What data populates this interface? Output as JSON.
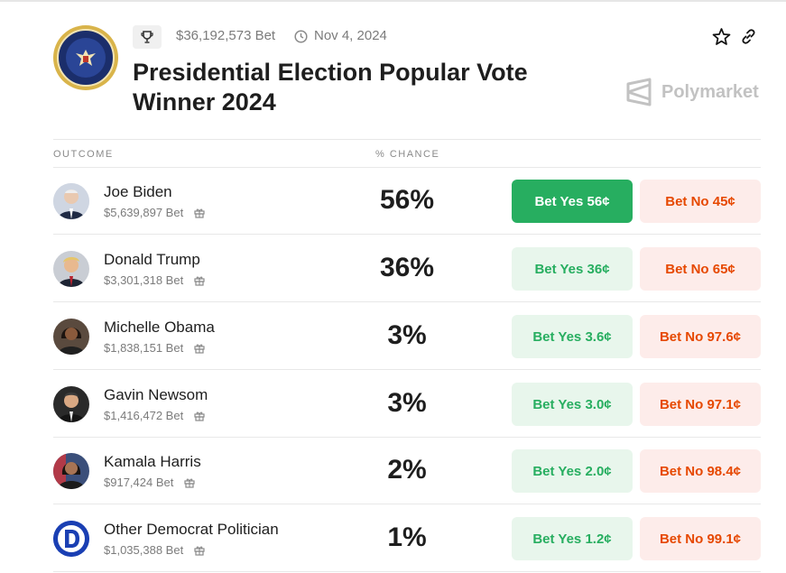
{
  "header": {
    "volume": "$36,192,573 Bet",
    "date": "Nov 4, 2024",
    "title": "Presidential Election Popular Vote Winner 2024",
    "brand": "Polymarket",
    "icons": [
      "trophy-icon",
      "clock-icon",
      "star-icon",
      "link-icon"
    ]
  },
  "table": {
    "columns": {
      "outcome": "OUTCOME",
      "chance": "% CHANCE"
    },
    "rows": [
      {
        "name": "Joe Biden",
        "bet": "$5,639,897 Bet",
        "chance": "56%",
        "yes": "Bet Yes 56¢",
        "no": "Bet No 45¢"
      },
      {
        "name": "Donald Trump",
        "bet": "$3,301,318 Bet",
        "chance": "36%",
        "yes": "Bet Yes 36¢",
        "no": "Bet No 65¢"
      },
      {
        "name": "Michelle Obama",
        "bet": "$1,838,151 Bet",
        "chance": "3%",
        "yes": "Bet Yes 3.6¢",
        "no": "Bet No 97.6¢"
      },
      {
        "name": "Gavin Newsom",
        "bet": "$1,416,472 Bet",
        "chance": "3%",
        "yes": "Bet Yes 3.0¢",
        "no": "Bet No 97.1¢"
      },
      {
        "name": "Kamala Harris",
        "bet": "$917,424 Bet",
        "chance": "2%",
        "yes": "Bet Yes 2.0¢",
        "no": "Bet No 98.4¢"
      },
      {
        "name": "Other Democrat Politician",
        "bet": "$1,035,388 Bet",
        "chance": "1%",
        "yes": "Bet Yes 1.2¢",
        "no": "Bet No 99.1¢"
      }
    ]
  },
  "colors": {
    "yes_active_bg": "#27ae60",
    "yes_bg": "#e8f6ec",
    "no_bg": "#fdecea",
    "no_text": "#e64800"
  }
}
